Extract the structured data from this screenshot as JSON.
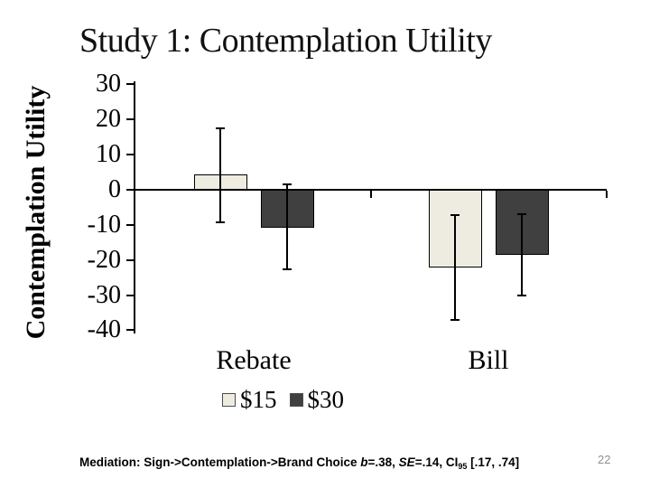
{
  "slide": {
    "title": "Study 1: Contemplation Utility",
    "page_number": "22",
    "footnote": {
      "prefix": "Mediation: Sign->Contemplation->Brand Choice ",
      "b_label": "b",
      "after_b": "=.38, ",
      "se_label": "SE",
      "after_se": "=.14, CI",
      "ci_subscript": "95",
      "ci_interval": " [.17, .74]"
    }
  },
  "chart_data": {
    "type": "bar",
    "title": "",
    "categories": [
      "Rebate",
      "Bill"
    ],
    "series": [
      {
        "name": "$15",
        "color": "#eeece1",
        "values": [
          4.4,
          -22.1
        ],
        "error_low": [
          -9.3,
          -37.1
        ],
        "error_high": [
          17.5,
          -7.2
        ]
      },
      {
        "name": "$30",
        "color": "#404040",
        "values": [
          -10.8,
          -18.5
        ],
        "error_low": [
          -22.6,
          -30.1
        ],
        "error_high": [
          1.5,
          -6.9
        ]
      }
    ],
    "xlabel": "",
    "ylabel": "Contemplation Utility",
    "ylim": [
      -40,
      30
    ],
    "yticks": [
      30,
      20,
      10,
      0,
      -10,
      -20,
      -30,
      -40
    ],
    "grid": false,
    "legend_position": "bottom-center",
    "axis_color": "#000000",
    "bar_border_color": "#000000",
    "error_bar_color": "#000000"
  }
}
